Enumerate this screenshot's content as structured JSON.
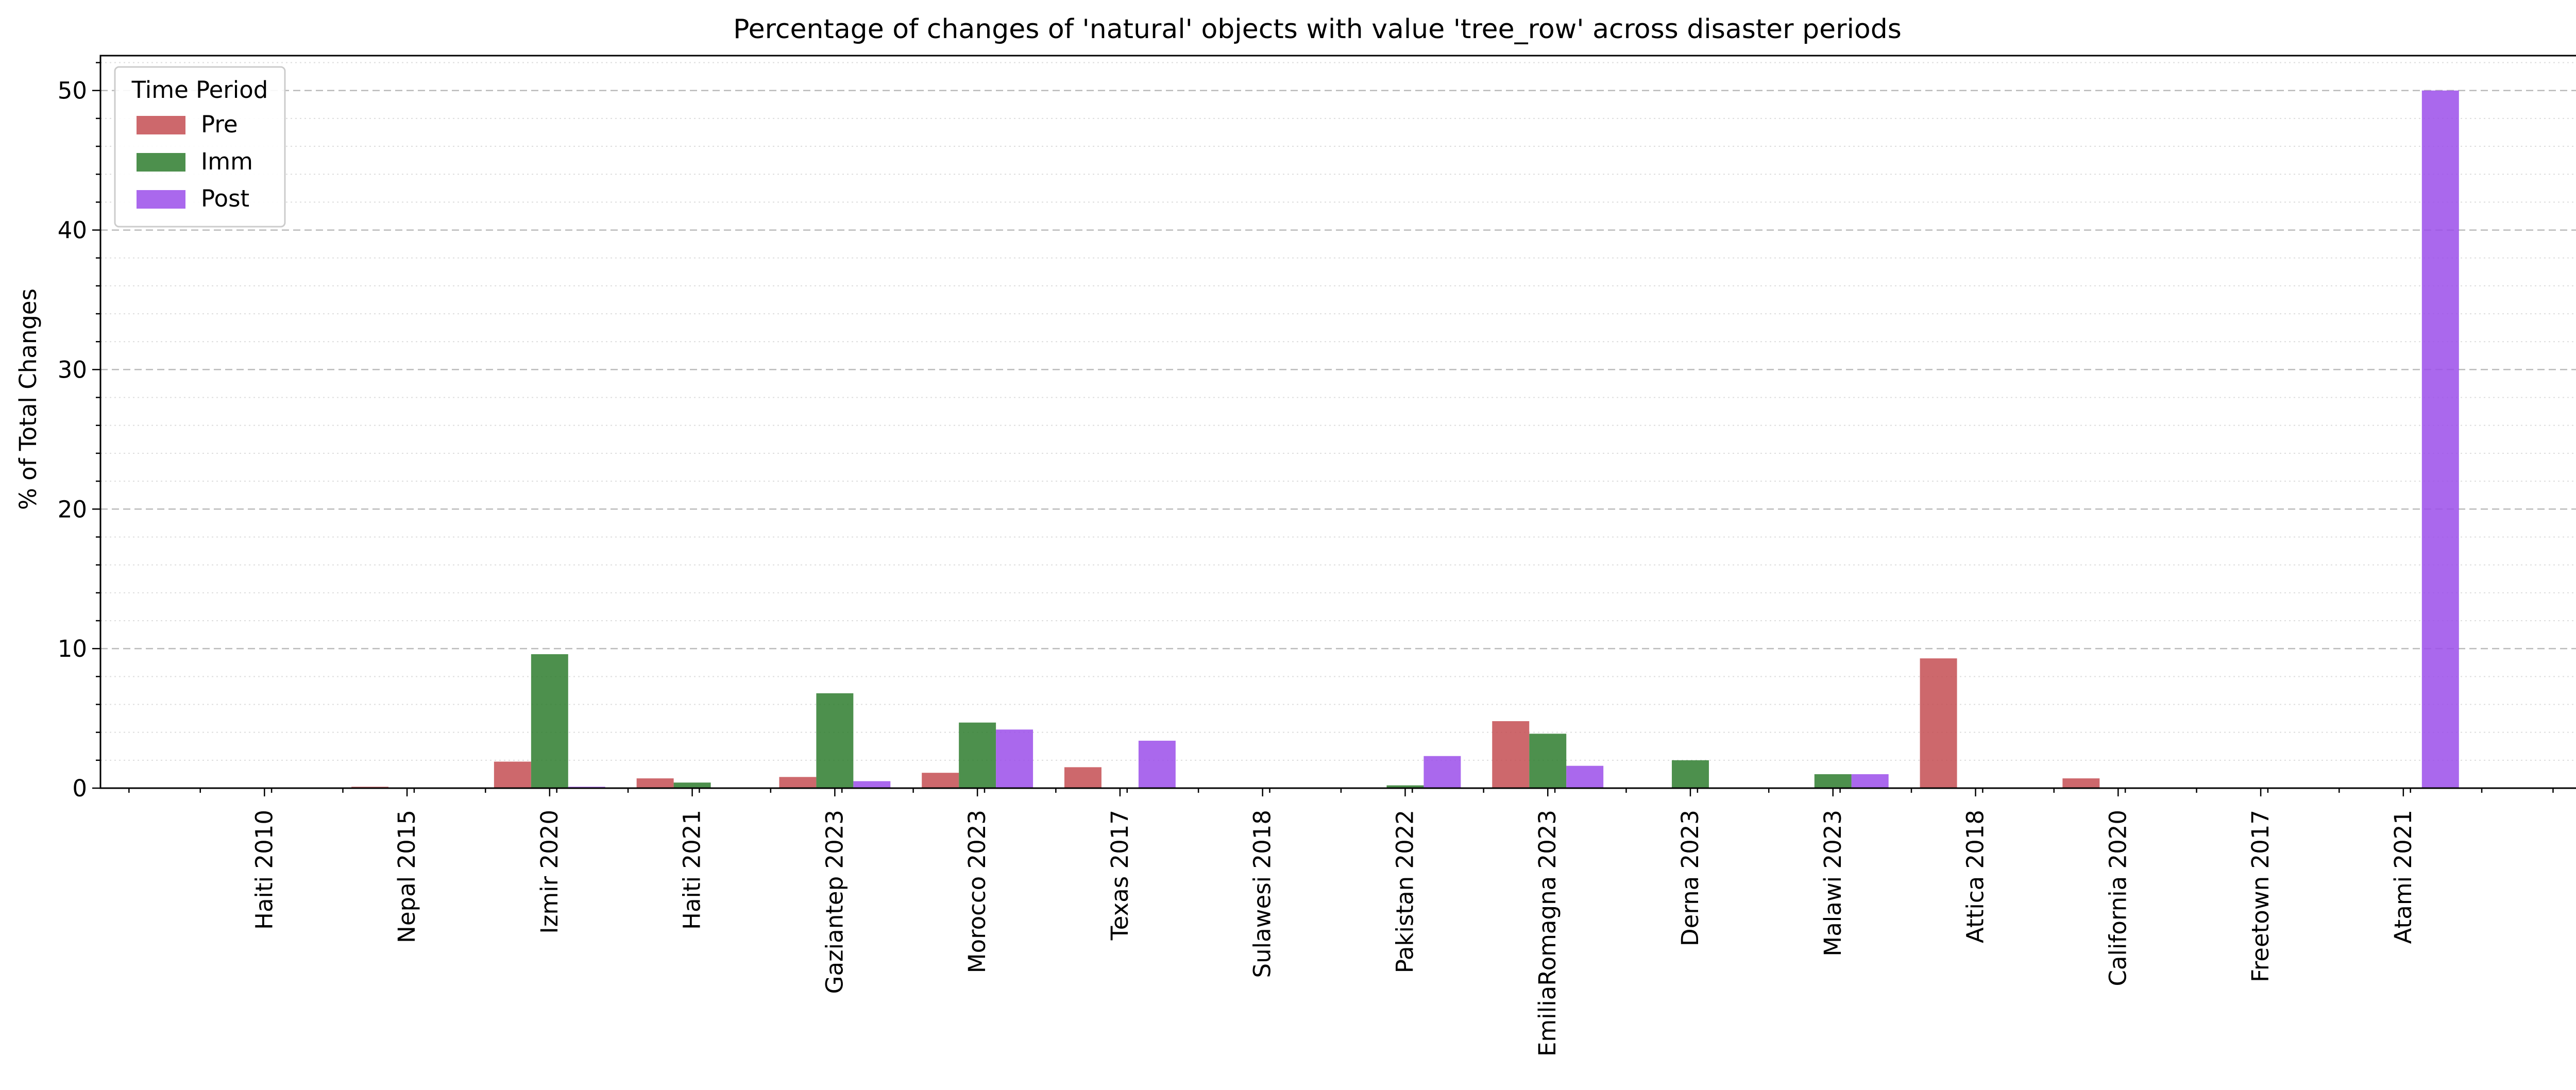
{
  "chart_data": {
    "type": "bar",
    "title": "Percentage of changes of 'natural' objects with value 'tree_row' across disaster periods",
    "xlabel": "",
    "ylabel": "% of Total Changes",
    "ylim": [
      0,
      52.5
    ],
    "yticks": [
      0,
      10,
      20,
      30,
      40,
      50
    ],
    "grid": true,
    "legend": {
      "title": "Time Period",
      "position": "top-left"
    },
    "categories": [
      "Haiti 2010",
      "Nepal 2015",
      "Izmir 2020",
      "Haiti 2021",
      "Gaziantep 2023",
      "Morocco 2023",
      "Texas 2017",
      "Sulawesi 2018",
      "Pakistan 2022",
      "EmiliaRomagna 2023",
      "Derna 2023",
      "Malawi 2023",
      "Attica 2018",
      "California 2020",
      "Freetown 2017",
      "Atami 2021"
    ],
    "series": [
      {
        "name": "Pre",
        "color": "#c44e52",
        "values": [
          0,
          0.1,
          1.9,
          0.7,
          0.8,
          1.1,
          1.5,
          0,
          0,
          4.8,
          0,
          0,
          9.3,
          0.7,
          0,
          0
        ]
      },
      {
        "name": "Imm",
        "color": "#2e7d2e",
        "values": [
          0,
          0,
          9.6,
          0.4,
          6.8,
          4.7,
          0,
          0,
          0.2,
          3.9,
          2.0,
          1.0,
          0,
          0,
          0,
          0
        ]
      },
      {
        "name": "Post",
        "color": "#9b4dea",
        "values": [
          0,
          0,
          0.1,
          0,
          0.5,
          4.2,
          3.4,
          0,
          2.3,
          1.6,
          0,
          1.0,
          0,
          0,
          0,
          50.0
        ]
      }
    ]
  }
}
